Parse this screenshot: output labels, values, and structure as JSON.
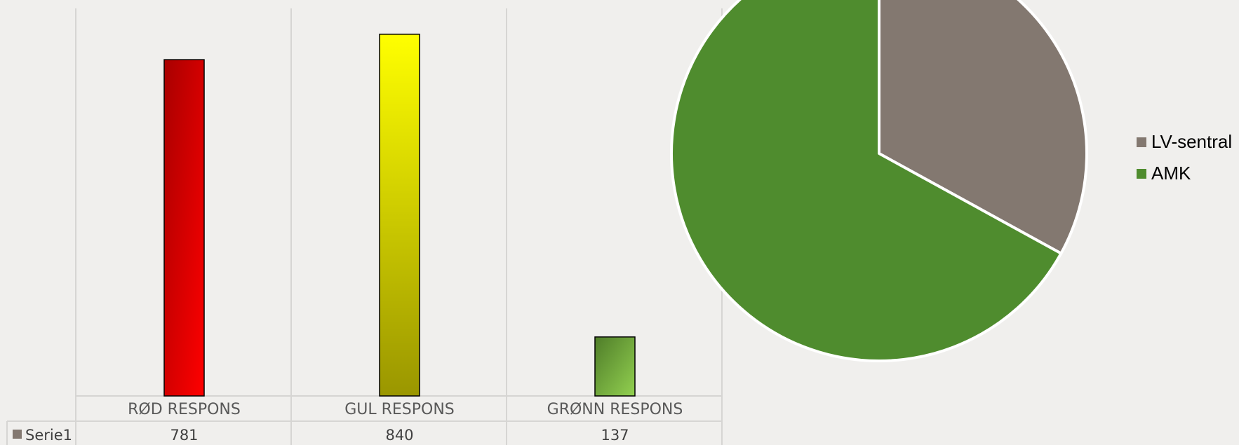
{
  "chart_data": [
    {
      "type": "bar",
      "categories": [
        "RØD RESPONS",
        "GUL RESPONS",
        "GRØNN RESPONS"
      ],
      "series": [
        {
          "name": "Serie1",
          "values": [
            781,
            840,
            137
          ]
        }
      ],
      "ylim": [
        0,
        900
      ],
      "grid": true,
      "legend": "data-table",
      "data_table": true,
      "colors": {
        "RØD RESPONS": [
          "#a80000",
          "#ff0000"
        ],
        "GUL RESPONS": [
          "#9a9600",
          "#ffff00"
        ],
        "GRØNN RESPONS": [
          "#4f7d29",
          "#92d050"
        ],
        "Serie1": "#837870"
      }
    },
    {
      "type": "pie",
      "categories": [
        "LV-sentral",
        "AMK"
      ],
      "values": [
        33,
        67
      ],
      "legend": "right",
      "colors": {
        "LV-sentral": "#837870",
        "AMK": "#4f8c2e"
      }
    }
  ]
}
